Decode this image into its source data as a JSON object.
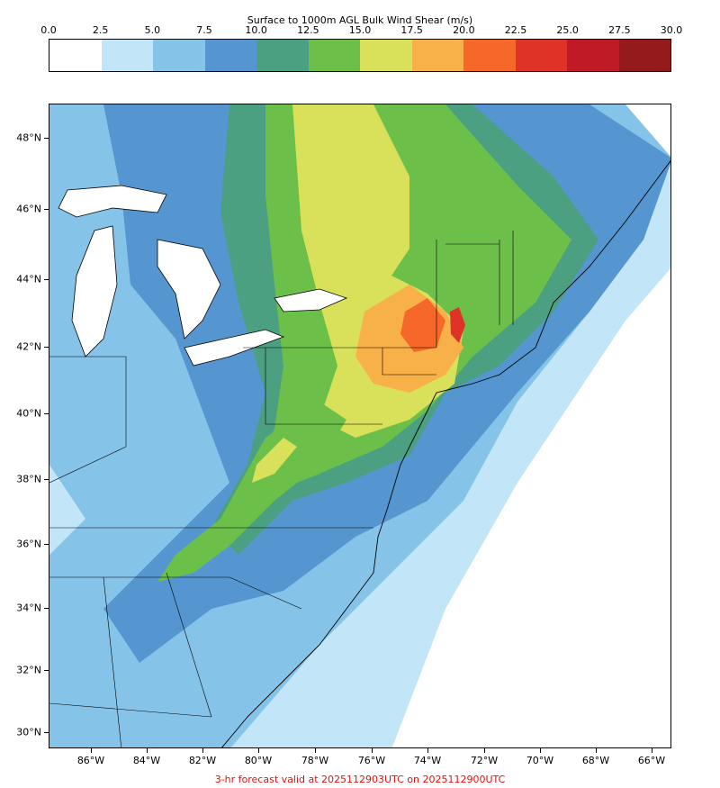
{
  "colorbar": {
    "title": "Surface to 1000m AGL Bulk Wind Shear (m/s)",
    "ticks": [
      "0.0",
      "2.5",
      "5.0",
      "7.5",
      "10.0",
      "12.5",
      "15.0",
      "17.5",
      "20.0",
      "22.5",
      "25.0",
      "27.5",
      "30.0"
    ],
    "colors": [
      "#ffffff",
      "#c2e6f7",
      "#86c3e8",
      "#5596d0",
      "#4aa080",
      "#6cc04a",
      "#d9e05a",
      "#f8b048",
      "#f5682a",
      "#df3328",
      "#c01a26",
      "#951a1c"
    ]
  },
  "axes": {
    "lat_labels": [
      "48°N",
      "46°N",
      "44°N",
      "42°N",
      "40°N",
      "38°N",
      "36°N",
      "34°N",
      "32°N",
      "30°N"
    ],
    "lon_labels": [
      "86°W",
      "84°W",
      "82°W",
      "80°W",
      "78°W",
      "76°W",
      "74°W",
      "72°W",
      "70°W",
      "68°W",
      "66°W"
    ]
  },
  "footer": {
    "text": "3-hr forecast valid at 2025112903UTC on 2025112900UTC"
  }
}
